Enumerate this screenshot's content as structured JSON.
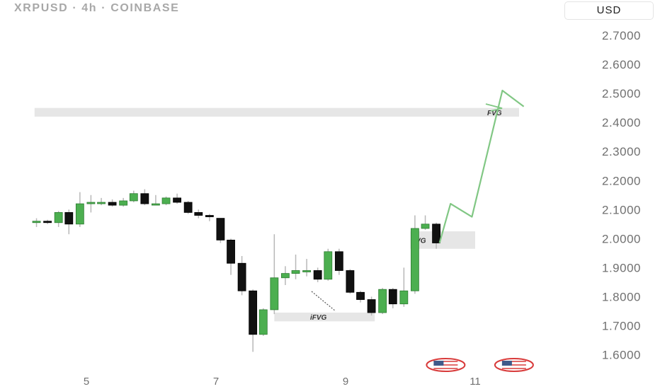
{
  "header": {
    "title": "XRPUSD · 4h · COINBASE",
    "currency": "USD"
  },
  "chart_data": {
    "type": "candlestick",
    "symbol": "XRPUSD",
    "interval": "4h",
    "exchange": "COINBASE",
    "ylim": [
      1.57,
      2.78
    ],
    "xlim": [
      4.2,
      11.6
    ],
    "y_ticks": [
      "2.7000",
      "2.6000",
      "2.5000",
      "2.4000",
      "2.3000",
      "2.2000",
      "2.1000",
      "2.0000",
      "1.9000",
      "1.8000",
      "1.7000",
      "1.6000"
    ],
    "x_ticks": [
      {
        "value": 5,
        "label": "5"
      },
      {
        "value": 7,
        "label": "7"
      },
      {
        "value": 9,
        "label": "9"
      },
      {
        "value": 11,
        "label": "11"
      }
    ],
    "colors": {
      "up": "#4caf50",
      "down": "#111111",
      "projection": "#81c784",
      "zone": "#e6e6e6",
      "event": "#d83a3a"
    },
    "candles": [
      {
        "t": 4.23,
        "o": 2.055,
        "h": 2.07,
        "l": 2.04,
        "c": 2.06
      },
      {
        "t": 4.4,
        "o": 2.06,
        "h": 2.065,
        "l": 2.05,
        "c": 2.055
      },
      {
        "t": 4.57,
        "o": 2.055,
        "h": 2.095,
        "l": 2.04,
        "c": 2.09
      },
      {
        "t": 4.73,
        "o": 2.09,
        "h": 2.1,
        "l": 2.015,
        "c": 2.05
      },
      {
        "t": 4.9,
        "o": 2.05,
        "h": 2.16,
        "l": 2.04,
        "c": 2.12
      },
      {
        "t": 5.07,
        "o": 2.12,
        "h": 2.15,
        "l": 2.09,
        "c": 2.125
      },
      {
        "t": 5.23,
        "o": 2.125,
        "h": 2.14,
        "l": 2.115,
        "c": 2.125
      },
      {
        "t": 5.4,
        "o": 2.125,
        "h": 2.135,
        "l": 2.11,
        "c": 2.115
      },
      {
        "t": 5.57,
        "o": 2.115,
        "h": 2.14,
        "l": 2.11,
        "c": 2.13
      },
      {
        "t": 5.73,
        "o": 2.13,
        "h": 2.165,
        "l": 2.125,
        "c": 2.155
      },
      {
        "t": 5.9,
        "o": 2.155,
        "h": 2.17,
        "l": 2.115,
        "c": 2.12
      },
      {
        "t": 6.07,
        "o": 2.12,
        "h": 2.15,
        "l": 2.115,
        "c": 2.12
      },
      {
        "t": 6.23,
        "o": 2.12,
        "h": 2.145,
        "l": 2.115,
        "c": 2.14
      },
      {
        "t": 6.4,
        "o": 2.14,
        "h": 2.155,
        "l": 2.12,
        "c": 2.125
      },
      {
        "t": 6.57,
        "o": 2.125,
        "h": 2.13,
        "l": 2.085,
        "c": 2.09
      },
      {
        "t": 6.73,
        "o": 2.09,
        "h": 2.1,
        "l": 2.07,
        "c": 2.08
      },
      {
        "t": 6.9,
        "o": 2.08,
        "h": 2.085,
        "l": 2.06,
        "c": 2.075
      },
      {
        "t": 7.07,
        "o": 2.07,
        "h": 2.07,
        "l": 1.985,
        "c": 1.995
      },
      {
        "t": 7.23,
        "o": 1.995,
        "h": 2.0,
        "l": 1.875,
        "c": 1.915
      },
      {
        "t": 7.4,
        "o": 1.915,
        "h": 1.94,
        "l": 1.805,
        "c": 1.82
      },
      {
        "t": 7.57,
        "o": 1.82,
        "h": 1.825,
        "l": 1.61,
        "c": 1.67
      },
      {
        "t": 7.73,
        "o": 1.67,
        "h": 1.76,
        "l": 1.665,
        "c": 1.755
      },
      {
        "t": 7.9,
        "o": 1.755,
        "h": 2.015,
        "l": 1.74,
        "c": 1.865
      },
      {
        "t": 8.07,
        "o": 1.865,
        "h": 1.905,
        "l": 1.84,
        "c": 1.88
      },
      {
        "t": 8.23,
        "o": 1.88,
        "h": 1.945,
        "l": 1.86,
        "c": 1.89
      },
      {
        "t": 8.4,
        "o": 1.89,
        "h": 1.93,
        "l": 1.87,
        "c": 1.89
      },
      {
        "t": 8.57,
        "o": 1.89,
        "h": 1.9,
        "l": 1.85,
        "c": 1.86
      },
      {
        "t": 8.73,
        "o": 1.86,
        "h": 1.965,
        "l": 1.855,
        "c": 1.955
      },
      {
        "t": 8.9,
        "o": 1.955,
        "h": 1.965,
        "l": 1.875,
        "c": 1.89
      },
      {
        "t": 9.07,
        "o": 1.89,
        "h": 1.895,
        "l": 1.81,
        "c": 1.815
      },
      {
        "t": 9.23,
        "o": 1.815,
        "h": 1.82,
        "l": 1.78,
        "c": 1.79
      },
      {
        "t": 9.4,
        "o": 1.79,
        "h": 1.8,
        "l": 1.735,
        "c": 1.745
      },
      {
        "t": 9.57,
        "o": 1.745,
        "h": 1.83,
        "l": 1.74,
        "c": 1.825
      },
      {
        "t": 9.73,
        "o": 1.825,
        "h": 1.83,
        "l": 1.76,
        "c": 1.775
      },
      {
        "t": 9.9,
        "o": 1.775,
        "h": 1.9,
        "l": 1.765,
        "c": 1.82
      },
      {
        "t": 10.07,
        "o": 1.82,
        "h": 2.08,
        "l": 1.81,
        "c": 2.035
      },
      {
        "t": 10.23,
        "o": 2.035,
        "h": 2.08,
        "l": 2.03,
        "c": 2.05
      },
      {
        "t": 10.4,
        "o": 2.05,
        "h": 2.055,
        "l": 1.965,
        "c": 1.985
      }
    ],
    "zones": [
      {
        "label": "FVG",
        "y0": 2.42,
        "y1": 2.45,
        "x0": 4.2,
        "x1": 11.8
      },
      {
        "label": "FVG",
        "y0": 1.965,
        "y1": 2.025,
        "x0": 10.0,
        "x1": 11.0
      },
      {
        "label": "iFVG",
        "y0": 1.715,
        "y1": 1.745,
        "x0": 7.9,
        "x1": 9.45
      }
    ],
    "projection": [
      {
        "t": 10.45,
        "v": 1.985
      },
      {
        "t": 10.62,
        "v": 2.12
      },
      {
        "t": 10.95,
        "v": 2.075
      },
      {
        "t": 11.42,
        "v": 2.51
      },
      {
        "t": 11.75,
        "v": 2.455
      }
    ],
    "events": [
      {
        "t": 10.6
      },
      {
        "t": 11.6
      }
    ]
  }
}
